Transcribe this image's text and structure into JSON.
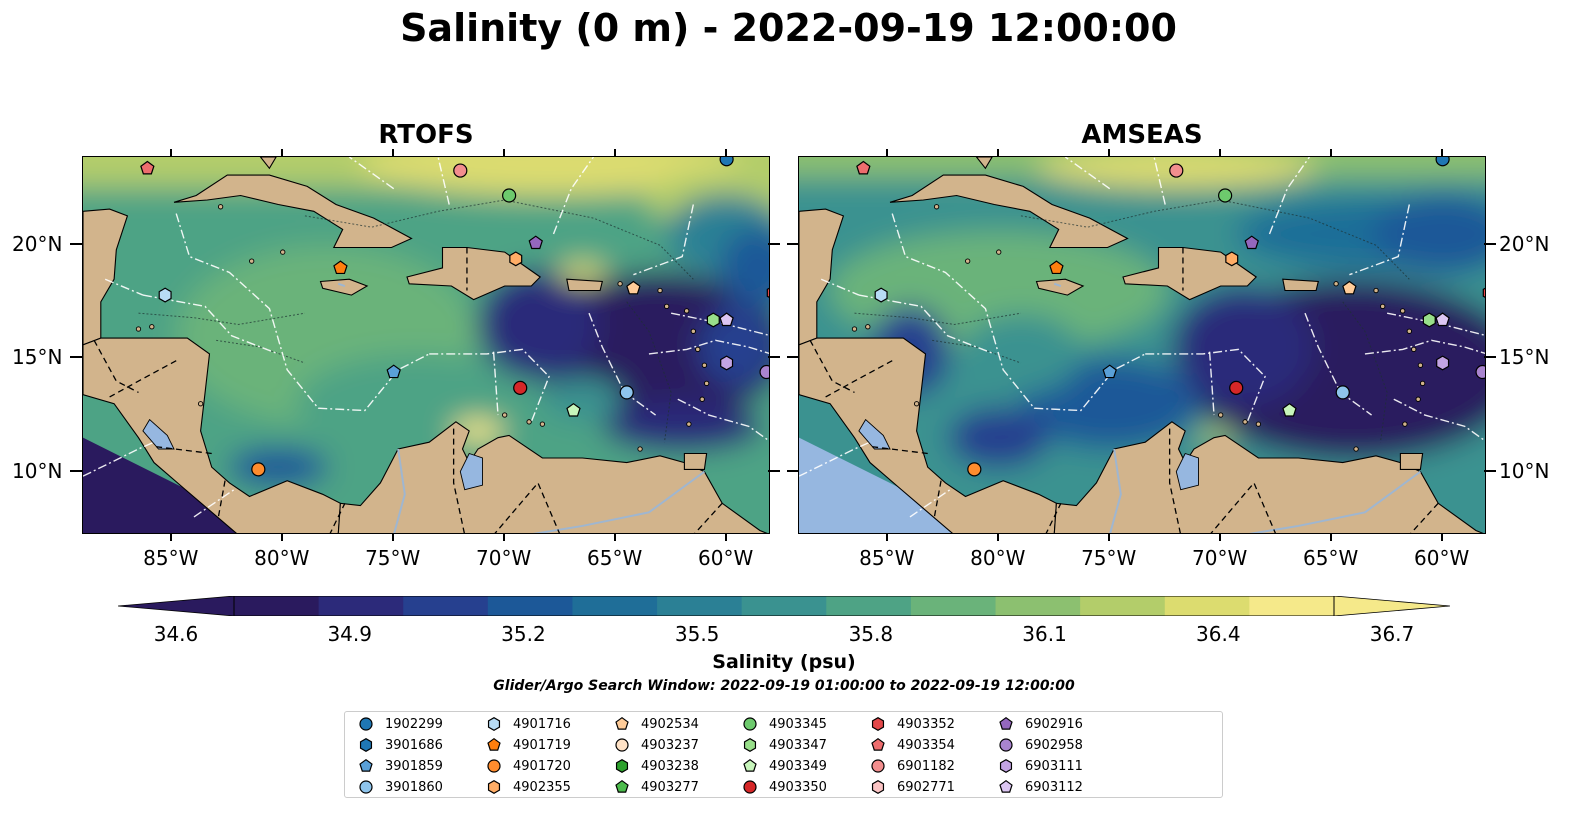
{
  "suptitle": "Salinity (0 m) - 2022-09-19 12:00:00",
  "panels": [
    {
      "title": "RTOFS",
      "variant": "rtofs"
    },
    {
      "title": "AMSEAS",
      "variant": "amseas"
    }
  ],
  "lon_ticks": [
    "85°W",
    "80°W",
    "75°W",
    "70°W",
    "65°W",
    "60°W"
  ],
  "lat_ticks": [
    "20°N",
    "15°N",
    "10°N"
  ],
  "colorbar": {
    "ticks": [
      "34.6",
      "34.9",
      "35.2",
      "35.5",
      "35.8",
      "36.1",
      "36.4",
      "36.7"
    ],
    "label": "Salinity (psu)",
    "colors": [
      "#2a1a5e",
      "#2c2a7a",
      "#26408f",
      "#1c5898",
      "#1f6e98",
      "#2b8095",
      "#3a9290",
      "#4ea385",
      "#6ab37a",
      "#8cc070",
      "#b3cd6a",
      "#dcdc6f",
      "#f5e98a"
    ]
  },
  "search_window": "Glider/Argo Search Window: 2022-09-19 01:00:00 to 2022-09-19 12:00:00",
  "legend": [
    {
      "id": "1902299",
      "color": "#1f77b4",
      "shape": "circle"
    },
    {
      "id": "3901686",
      "color": "#1f77b4",
      "shape": "hexagon"
    },
    {
      "id": "3901859",
      "color": "#5aa0d8",
      "shape": "pentagon"
    },
    {
      "id": "3901860",
      "color": "#8ec4ec",
      "shape": "circle"
    },
    {
      "id": "4901716",
      "color": "#b7dcf5",
      "shape": "hexagon"
    },
    {
      "id": "4901719",
      "color": "#ff7f0e",
      "shape": "pentagon"
    },
    {
      "id": "4901720",
      "color": "#ff8c2e",
      "shape": "circle"
    },
    {
      "id": "4902355",
      "color": "#ffad66",
      "shape": "hexagon"
    },
    {
      "id": "4902534",
      "color": "#ffcc99",
      "shape": "pentagon"
    },
    {
      "id": "4903237",
      "color": "#ffe2c6",
      "shape": "circle"
    },
    {
      "id": "4903238",
      "color": "#2ca02c",
      "shape": "hexagon"
    },
    {
      "id": "4903277",
      "color": "#4cbb4c",
      "shape": "pentagon"
    },
    {
      "id": "4903345",
      "color": "#6dca6d",
      "shape": "circle"
    },
    {
      "id": "4903347",
      "color": "#98df8a",
      "shape": "hexagon"
    },
    {
      "id": "4903349",
      "color": "#c7f5bb",
      "shape": "pentagon"
    },
    {
      "id": "4903350",
      "color": "#d62728",
      "shape": "circle"
    },
    {
      "id": "4903352",
      "color": "#e3484a",
      "shape": "hexagon"
    },
    {
      "id": "4903354",
      "color": "#ee6d6e",
      "shape": "pentagon"
    },
    {
      "id": "6901182",
      "color": "#f28e8e",
      "shape": "circle"
    },
    {
      "id": "6902771",
      "color": "#fbc4c4",
      "shape": "hexagon"
    },
    {
      "id": "6902916",
      "color": "#9467bd",
      "shape": "pentagon"
    },
    {
      "id": "6902958",
      "color": "#a984cf",
      "shape": "circle"
    },
    {
      "id": "6903111",
      "color": "#c3a4e3",
      "shape": "hexagon"
    },
    {
      "id": "6903112",
      "color": "#dcc6f2",
      "shape": "pentagon"
    }
  ],
  "markers": [
    {
      "id": "1902299",
      "lon": -60.0,
      "lat": 23.8
    },
    {
      "id": "6903112",
      "lon": -60.0,
      "lat": 16.7
    },
    {
      "id": "6903111",
      "lon": -60.0,
      "lat": 14.8
    },
    {
      "id": "6902958",
      "lon": -58.2,
      "lat": 14.4
    },
    {
      "id": "4903354",
      "lon": -86.1,
      "lat": 23.4
    },
    {
      "id": "6901182",
      "lon": -72.0,
      "lat": 23.3
    },
    {
      "id": "4903345",
      "lon": -69.8,
      "lat": 22.2
    },
    {
      "id": "6902916",
      "lon": -68.6,
      "lat": 20.1
    },
    {
      "id": "4902355",
      "lon": -69.5,
      "lat": 19.4
    },
    {
      "id": "4901719",
      "lon": -77.4,
      "lat": 19.0
    },
    {
      "id": "4901716",
      "lon": -85.3,
      "lat": 17.8
    },
    {
      "id": "4902534",
      "lon": -64.2,
      "lat": 18.1
    },
    {
      "id": "4903352",
      "lon": -57.9,
      "lat": 17.9
    },
    {
      "id": "4903347",
      "lon": -60.6,
      "lat": 16.7
    },
    {
      "id": "3901859",
      "lon": -75.0,
      "lat": 14.4
    },
    {
      "id": "4903350",
      "lon": -69.3,
      "lat": 13.7
    },
    {
      "id": "3901860",
      "lon": -64.5,
      "lat": 13.5
    },
    {
      "id": "4903349",
      "lon": -66.9,
      "lat": 12.7
    },
    {
      "id": "4901720",
      "lon": -81.1,
      "lat": 10.1
    }
  ]
}
